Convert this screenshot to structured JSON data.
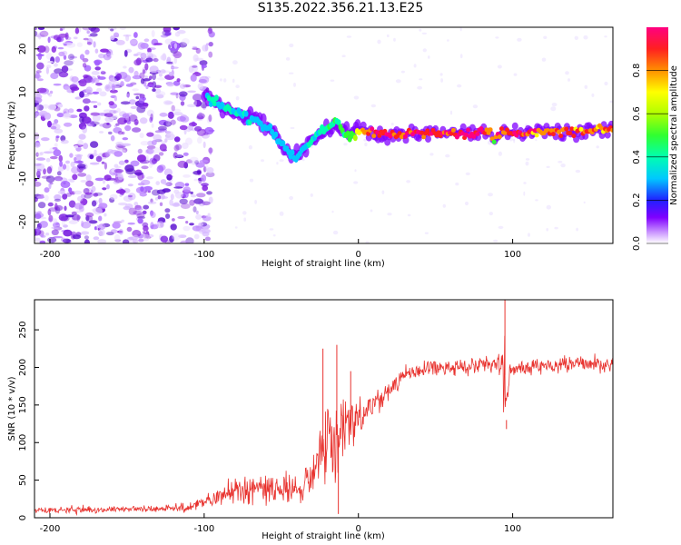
{
  "title": "S135.2022.356.21.13.E25",
  "colors": {
    "signal": "#e8322e",
    "spectrum_core": "#ff2020",
    "axis": "#000000"
  },
  "chart_data": [
    {
      "type": "heatmap",
      "name": "spectrogram",
      "xlabel": "Height of straight line (km)",
      "ylabel": "Frequency (Hz)",
      "xlim": [
        -210,
        165
      ],
      "ylim": [
        -25,
        25
      ],
      "xticks": [
        -200,
        -100,
        0,
        100
      ],
      "yticks": [
        -20,
        -10,
        0,
        10,
        20
      ],
      "ridge": {
        "x": [
          -100,
          -95,
          -90,
          -85,
          -80,
          -75,
          -70,
          -65,
          -60,
          -55,
          -50,
          -45,
          -40,
          -35,
          -30,
          -25,
          -20,
          -15,
          -10,
          -5,
          0,
          5,
          10,
          20,
          40,
          60,
          80,
          85,
          88,
          90,
          95,
          100,
          120,
          140,
          165
        ],
        "y": [
          9,
          8,
          7,
          6,
          5,
          4.5,
          4,
          3,
          2,
          0,
          -2,
          -4,
          -5,
          -3,
          -1,
          1,
          2,
          3,
          1,
          0,
          1,
          0.5,
          0.5,
          0.5,
          0.5,
          0.5,
          0.7,
          1,
          -2,
          0.5,
          0.6,
          0.6,
          0.8,
          1,
          1.3
        ],
        "level": [
          0.25,
          0.3,
          0.3,
          0.3,
          0.3,
          0.28,
          0.28,
          0.25,
          0.25,
          0.25,
          0.25,
          0.22,
          0.22,
          0.25,
          0.3,
          0.32,
          0.35,
          0.38,
          0.4,
          0.45,
          0.6,
          0.8,
          0.85,
          0.9,
          0.9,
          0.9,
          0.88,
          0.85,
          0.5,
          0.85,
          0.85,
          0.85,
          0.8,
          0.78,
          0.75
        ]
      }
    },
    {
      "type": "line",
      "name": "snr",
      "xlabel": "Height of straight line (km)",
      "ylabel": "SNR (10 * v/v)",
      "xlim": [
        -210,
        165
      ],
      "ylim": [
        0,
        290
      ],
      "xticks": [
        -200,
        -100,
        0,
        100
      ],
      "yticks": [
        0,
        50,
        100,
        150,
        200,
        250
      ],
      "envelope": {
        "x": [
          -210,
          -150,
          -110,
          -100,
          -90,
          -80,
          -70,
          -60,
          -50,
          -40,
          -30,
          -25,
          -20,
          -15,
          -10,
          -5,
          0,
          10,
          20,
          30,
          40,
          60,
          80,
          90,
          93,
          95,
          96,
          98,
          100,
          120,
          140,
          165
        ],
        "mean": [
          10,
          11,
          13,
          20,
          30,
          38,
          42,
          38,
          38,
          40,
          50,
          80,
          100,
          110,
          110,
          120,
          130,
          150,
          170,
          190,
          198,
          200,
          203,
          205,
          200,
          190,
          130,
          200,
          200,
          202,
          204,
          205
        ],
        "noise": [
          5,
          5,
          6,
          10,
          15,
          22,
          25,
          22,
          22,
          22,
          30,
          50,
          70,
          60,
          50,
          40,
          30,
          20,
          14,
          12,
          12,
          12,
          12,
          12,
          30,
          60,
          30,
          12,
          12,
          12,
          12,
          12
        ]
      },
      "spikes": [
        {
          "x": -23,
          "value": 225
        },
        {
          "x": -14,
          "value": 230
        },
        {
          "x": -13,
          "value": 5
        },
        {
          "x": -5,
          "value": 195
        },
        {
          "x": 95,
          "value": 290
        },
        {
          "x": 96,
          "value": 118
        }
      ]
    }
  ],
  "colorbar": {
    "label": "Normalized spectral amplitude",
    "ticks": [
      0.0,
      0.2,
      0.4,
      0.6,
      0.8
    ],
    "range": [
      0,
      1
    ]
  }
}
